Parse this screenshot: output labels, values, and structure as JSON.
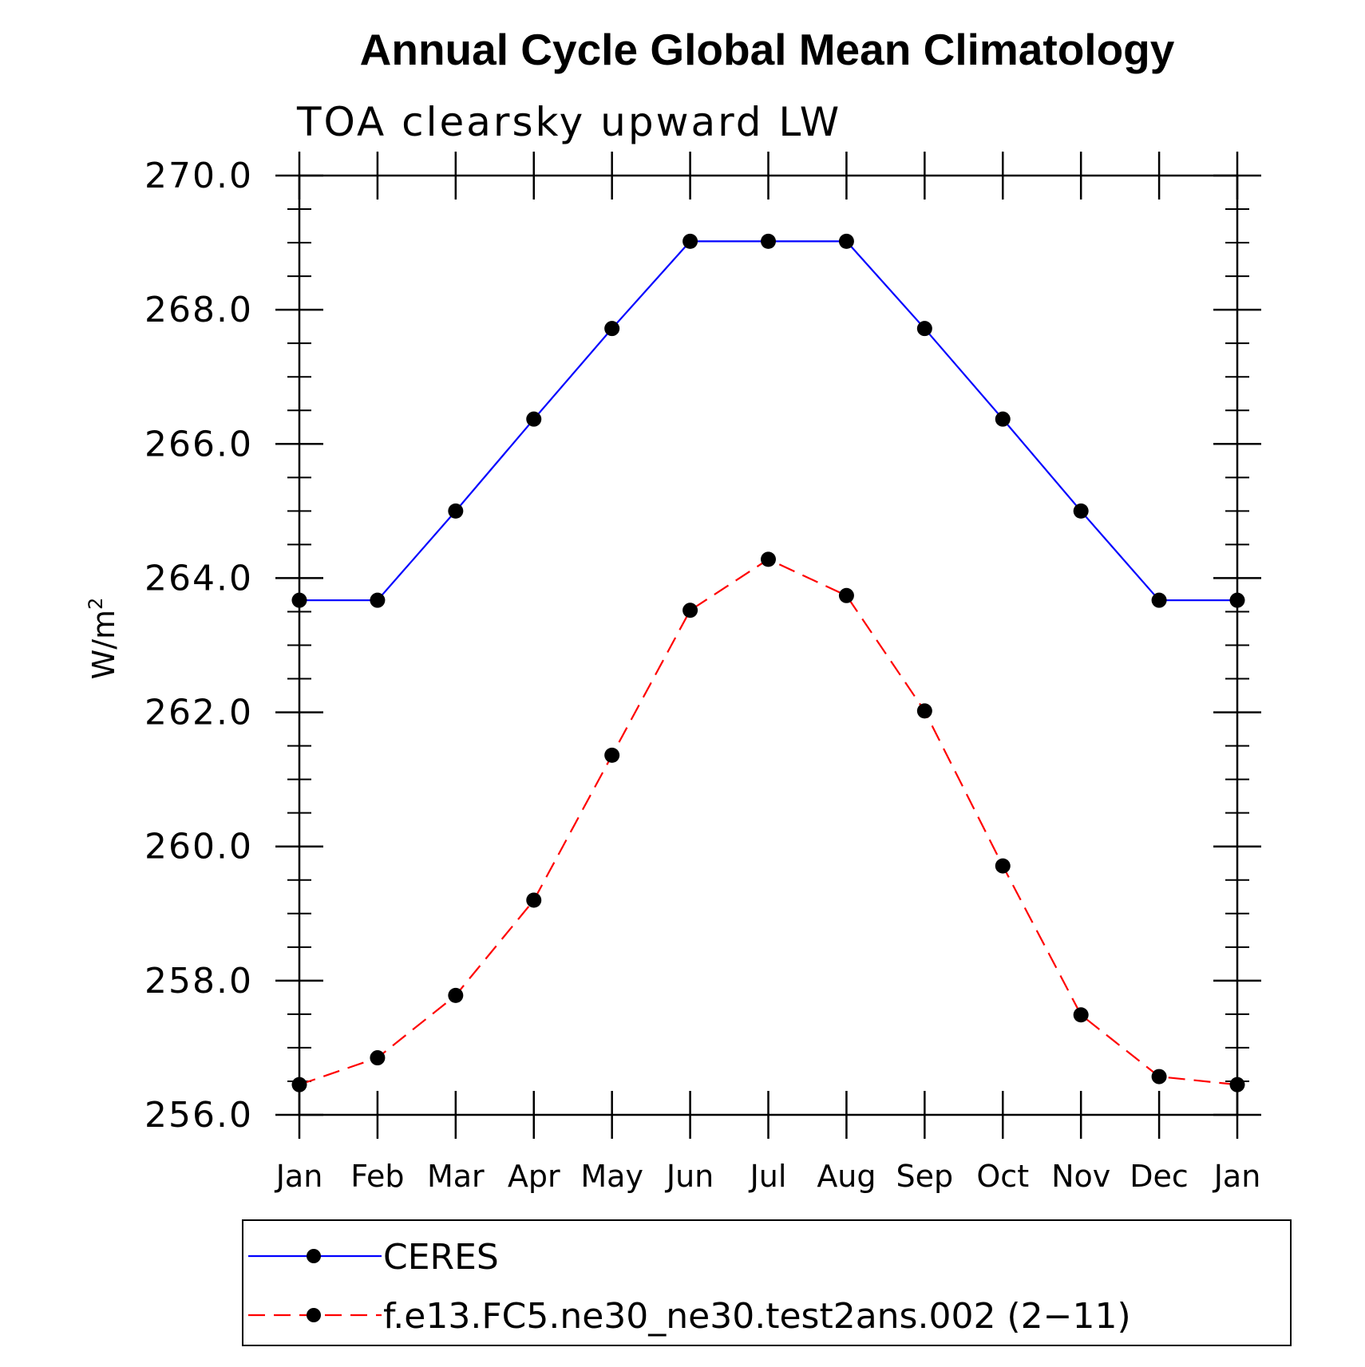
{
  "chart_data": {
    "type": "line",
    "title": "Annual Cycle Global Mean Climatology",
    "subtitle": "TOA clearsky upward LW",
    "ylabel": "W/m",
    "ylabel_superscript": "2",
    "xlabel": "",
    "categories": [
      "Jan",
      "Feb",
      "Mar",
      "Apr",
      "May",
      "Jun",
      "Jul",
      "Aug",
      "Sep",
      "Oct",
      "Nov",
      "Dec",
      "Jan"
    ],
    "ylim": [
      256.0,
      270.0
    ],
    "yticks": [
      256.0,
      258.0,
      260.0,
      262.0,
      264.0,
      266.0,
      268.0,
      270.0
    ],
    "ytick_labels": [
      "256.0",
      "258.0",
      "260.0",
      "262.0",
      "264.0",
      "266.0",
      "268.0",
      "270.0"
    ],
    "y_minor_step": 0.5,
    "grid": false,
    "legend_position": "bottom",
    "series": [
      {
        "name": "CERES",
        "color": "#0000ff",
        "dash": "solid",
        "marker": "circle",
        "values": [
          263.67,
          263.67,
          265.0,
          266.37,
          267.72,
          269.02,
          269.02,
          269.02,
          267.72,
          266.37,
          265.0,
          263.67,
          263.67
        ]
      },
      {
        "name": "f.e13.FC5.ne30_ne30.test2ans.002 (2−11)",
        "color": "#ff0000",
        "dash": "dashed",
        "marker": "circle",
        "values": [
          256.45,
          256.85,
          257.78,
          259.2,
          261.36,
          263.52,
          264.28,
          263.74,
          262.02,
          259.71,
          257.49,
          256.57,
          256.45
        ]
      }
    ]
  }
}
